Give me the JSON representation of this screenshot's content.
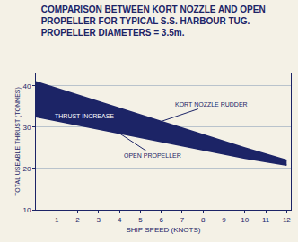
{
  "chart_data": {
    "type": "line",
    "title": "COMPARISON BETWEEN KORT NOZZLE AND OPEN PROPELLER FOR TYPICAL S.S. HARBOUR TUG.",
    "subtitle": "PROPELLER DIAMETERS = 3.5m.",
    "x_label": "SHIP SPEED (KNOTS)",
    "y_label": "TOTAL USEABLE THRUST (TONNES)",
    "x": [
      0,
      2,
      4,
      6,
      8,
      10,
      12
    ],
    "series": [
      {
        "name": "OPEN PROPELLER",
        "color": "#1c2466",
        "values": [
          32.5,
          30.5,
          28.5,
          26.5,
          24.5,
          22.5,
          20.8
        ]
      },
      {
        "name": "KORT NOZZLE RUDDER",
        "color": "#1c2466",
        "values": [
          41,
          37.8,
          34.6,
          31.4,
          28.2,
          25,
          22
        ]
      }
    ],
    "annotations": [
      "THRUST INCREASE"
    ],
    "xlim": [
      0,
      12.2
    ],
    "xticks": [
      1,
      2,
      3,
      4,
      5,
      6,
      7,
      8,
      9,
      10,
      11,
      12
    ],
    "ylim": [
      10,
      43
    ],
    "yticks": [
      10,
      20,
      30,
      40
    ],
    "grid": true
  }
}
